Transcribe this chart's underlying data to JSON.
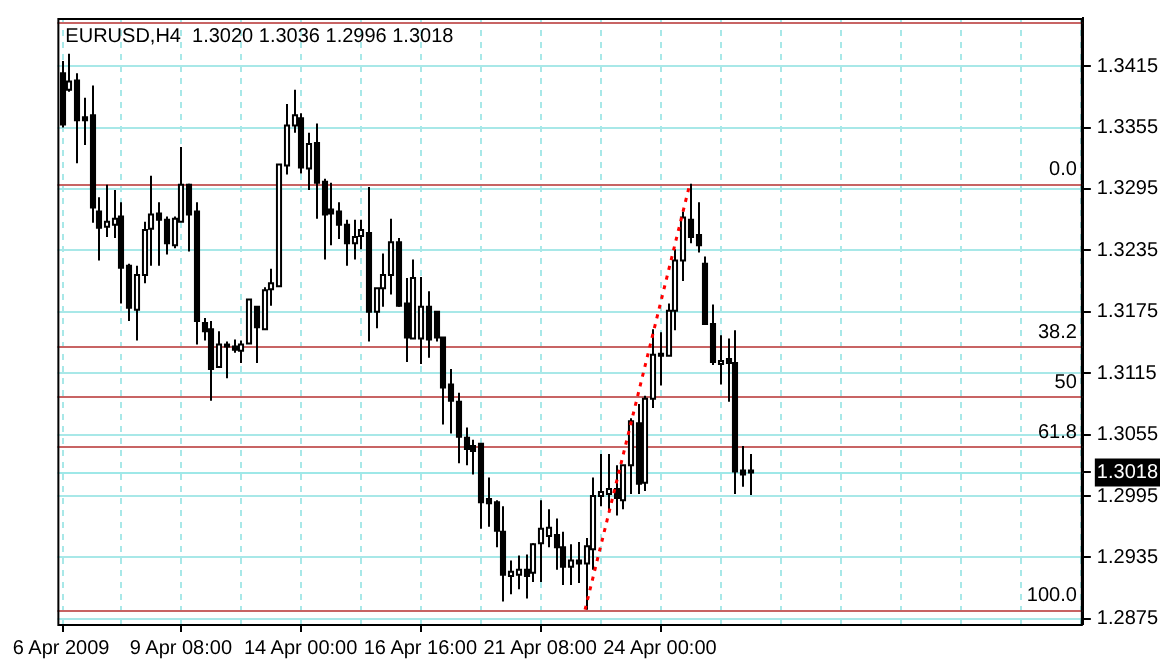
{
  "chart_data": {
    "type": "candlestick",
    "title": "EURUSD,H4  1.3020 1.3036 1.2996 1.3018",
    "categories": [
      "6 Apr 2009",
      null,
      null,
      null,
      null,
      null,
      null,
      null,
      null,
      null,
      null,
      null,
      null,
      null,
      null,
      null,
      "9 Apr 08:00",
      null,
      null,
      null,
      null,
      null,
      null,
      null,
      null,
      null,
      null,
      null,
      null,
      null,
      null,
      null,
      "14 Apr 00:00",
      null,
      null,
      null,
      null,
      null,
      null,
      null,
      null,
      null,
      null,
      null,
      null,
      null,
      null,
      null,
      "16 Apr 16:00",
      null,
      null,
      null,
      null,
      null,
      null,
      null,
      null,
      null,
      null,
      null,
      null,
      null,
      null,
      null,
      "21 Apr 08:00",
      null,
      null,
      null,
      null,
      null,
      null,
      null,
      null,
      null,
      null,
      null,
      null,
      null,
      null,
      null,
      "24 Apr 00:00",
      null,
      null,
      null,
      null,
      null,
      null,
      null,
      null,
      null,
      null,
      null,
      null,
      null,
      null,
      null,
      null,
      null,
      null,
      null,
      null,
      null,
      null,
      null,
      null,
      null,
      null,
      null,
      null,
      null,
      null,
      null,
      null,
      null,
      null,
      null,
      null,
      null,
      null,
      null,
      null,
      null,
      null,
      null,
      null,
      null,
      null,
      null,
      null,
      null,
      null,
      null,
      null,
      null,
      null,
      null,
      null
    ],
    "ohlc": [
      [
        1.3408,
        1.342,
        1.3355,
        1.3358
      ],
      [
        1.3392,
        1.3427,
        1.339,
        1.34
      ],
      [
        1.3401,
        1.3408,
        1.332,
        1.3362
      ],
      [
        1.3365,
        1.3384,
        1.3338,
        1.3362
      ],
      [
        1.3367,
        1.3396,
        1.3262,
        1.3277
      ],
      [
        1.3273,
        1.3287,
        1.3225,
        1.3257
      ],
      [
        1.3258,
        1.3299,
        1.3248,
        1.3263
      ],
      [
        1.326,
        1.3294,
        1.3247,
        1.3266
      ],
      [
        1.3268,
        1.3282,
        1.3183,
        1.3218
      ],
      [
        1.322,
        1.3222,
        1.3166,
        1.3179
      ],
      [
        1.3177,
        1.322,
        1.3147,
        1.3211
      ],
      [
        1.3211,
        1.3263,
        1.3203,
        1.3255
      ],
      [
        1.3256,
        1.3308,
        1.322,
        1.327
      ],
      [
        1.3271,
        1.3282,
        1.322,
        1.3265
      ],
      [
        1.3265,
        1.3268,
        1.3231,
        1.3242
      ],
      [
        1.324,
        1.3268,
        1.3237,
        1.3266
      ],
      [
        1.3263,
        1.3336,
        1.3263,
        1.3299
      ],
      [
        1.3299,
        1.33,
        1.3234,
        1.327
      ],
      [
        1.3273,
        1.3282,
        1.3143,
        1.3166
      ],
      [
        1.3164,
        1.3169,
        1.3147,
        1.3156
      ],
      [
        1.3158,
        1.3166,
        1.3088,
        1.3119
      ],
      [
        1.3121,
        1.3156,
        1.3121,
        1.3143
      ],
      [
        1.3142,
        1.3146,
        1.311,
        1.3143
      ],
      [
        1.3141,
        1.3148,
        1.3135,
        1.3138
      ],
      [
        1.3137,
        1.3147,
        1.3125,
        1.3143
      ],
      [
        1.3144,
        1.3187,
        1.3144,
        1.3187
      ],
      [
        1.318,
        1.318,
        1.3125,
        1.316
      ],
      [
        1.3158,
        1.3199,
        1.3158,
        1.3196
      ],
      [
        1.3197,
        1.3217,
        1.3181,
        1.3203
      ],
      [
        1.32,
        1.3319,
        1.32,
        1.3319
      ],
      [
        1.3318,
        1.3378,
        1.3309,
        1.3357
      ],
      [
        1.3357,
        1.3392,
        1.335,
        1.3367
      ],
      [
        1.3364,
        1.3369,
        1.331,
        1.3316
      ],
      [
        1.3315,
        1.335,
        1.3294,
        1.3339
      ],
      [
        1.334,
        1.3359,
        1.3266,
        1.3301
      ],
      [
        1.3302,
        1.3305,
        1.3226,
        1.327
      ],
      [
        1.3275,
        1.3301,
        1.324,
        1.3271
      ],
      [
        1.3273,
        1.3282,
        1.3246,
        1.326
      ],
      [
        1.326,
        1.3265,
        1.322,
        1.3242
      ],
      [
        1.3242,
        1.3265,
        1.3226,
        1.3248
      ],
      [
        1.3249,
        1.3265,
        1.3236,
        1.3255
      ],
      [
        1.3252,
        1.3297,
        1.3146,
        1.3175
      ],
      [
        1.3175,
        1.3198,
        1.3159,
        1.3198
      ],
      [
        1.3198,
        1.3232,
        1.318,
        1.3211
      ],
      [
        1.3211,
        1.3266,
        1.3192,
        1.3243
      ],
      [
        1.3243,
        1.3247,
        1.318,
        1.3181
      ],
      [
        1.3183,
        1.3208,
        1.3126,
        1.315
      ],
      [
        1.3149,
        1.3226,
        1.3149,
        1.3208
      ],
      [
        1.3149,
        1.3209,
        1.3124,
        1.318
      ],
      [
        1.318,
        1.3195,
        1.313,
        1.3148
      ],
      [
        1.3175,
        1.3175,
        1.3146,
        1.315
      ],
      [
        1.315,
        1.315,
        1.3065,
        1.3101
      ],
      [
        1.3104,
        1.3119,
        1.3056,
        1.3088
      ],
      [
        1.3087,
        1.3096,
        1.3027,
        1.3053
      ],
      [
        1.3052,
        1.3062,
        1.3025,
        1.3041
      ],
      [
        1.3044,
        1.305,
        1.3016,
        1.3039
      ],
      [
        1.3046,
        1.3046,
        1.2963,
        1.2989
      ],
      [
        1.2992,
        1.3013,
        1.2965,
        1.2988
      ],
      [
        1.2989,
        1.2991,
        1.2945,
        1.2961
      ],
      [
        1.296,
        1.2985,
        1.2892,
        1.2918
      ],
      [
        1.2917,
        1.2932,
        1.2899,
        1.2921
      ],
      [
        1.2918,
        1.2937,
        1.2904,
        1.2923
      ],
      [
        1.2923,
        1.2938,
        1.2895,
        1.2917
      ],
      [
        1.292,
        1.2949,
        1.2911,
        1.2948
      ],
      [
        1.2949,
        1.2991,
        1.2911,
        1.2963
      ],
      [
        1.2956,
        1.2982,
        1.2945,
        1.2964
      ],
      [
        1.2957,
        1.2973,
        1.2923,
        1.2945
      ],
      [
        1.2945,
        1.296,
        1.2908,
        1.2926
      ],
      [
        1.2926,
        1.2948,
        1.2908,
        1.2932
      ],
      [
        1.2932,
        1.295,
        1.291,
        1.2929
      ],
      [
        1.2929,
        1.2954,
        1.2884,
        1.2946
      ],
      [
        1.2943,
        1.3013,
        1.2923,
        1.2995
      ],
      [
        1.2995,
        1.3036,
        1.2985,
        1.2999
      ],
      [
        1.2997,
        1.3036,
        1.2979,
        1.3002
      ],
      [
        1.3002,
        1.3025,
        1.2976,
        1.2993
      ],
      [
        1.2991,
        1.3025,
        1.2982,
        1.3025
      ],
      [
        1.3025,
        1.3071,
        1.2997,
        1.3068
      ],
      [
        1.3066,
        1.3085,
        1.2997,
        1.3007
      ],
      [
        1.3008,
        1.3093,
        1.3,
        1.309
      ],
      [
        1.309,
        1.3158,
        1.3081,
        1.3133
      ],
      [
        1.3132,
        1.3155,
        1.3103,
        1.3134
      ],
      [
        1.3132,
        1.3183,
        1.3132,
        1.3176
      ],
      [
        1.3176,
        1.3236,
        1.3157,
        1.3225
      ],
      [
        1.3225,
        1.3273,
        1.3205,
        1.3267
      ],
      [
        1.3265,
        1.33,
        1.3242,
        1.3248
      ],
      [
        1.325,
        1.3282,
        1.3233,
        1.324
      ],
      [
        1.3222,
        1.3229,
        1.3163,
        1.3163
      ],
      [
        1.3163,
        1.3182,
        1.3123,
        1.3126
      ],
      [
        1.3124,
        1.3152,
        1.3104,
        1.3127
      ],
      [
        1.3129,
        1.3149,
        1.3087,
        1.3125
      ],
      [
        1.3125,
        1.3157,
        1.2997,
        1.3019
      ],
      [
        1.302,
        1.3044,
        1.3004,
        1.3016
      ],
      [
        1.302,
        1.3036,
        1.2996,
        1.3018
      ],
      null,
      null,
      null,
      null,
      null,
      null,
      null,
      null,
      null,
      null,
      null,
      null,
      null,
      null,
      null,
      null,
      null,
      null,
      null,
      null,
      null,
      null,
      null,
      null,
      null,
      null,
      null,
      null,
      null,
      null,
      null,
      null,
      null,
      null,
      null,
      null,
      null,
      null,
      null,
      null,
      null,
      null,
      null,
      null
    ],
    "series": [
      {
        "type": "line",
        "color": "#ff0000",
        "line_style": "dotted",
        "values": [
          null,
          null,
          null,
          null,
          null,
          null,
          null,
          null,
          null,
          null,
          null,
          null,
          null,
          null,
          null,
          null,
          null,
          null,
          null,
          null,
          null,
          null,
          null,
          null,
          null,
          null,
          null,
          null,
          null,
          null,
          null,
          null,
          null,
          null,
          null,
          null,
          null,
          null,
          null,
          null,
          null,
          null,
          null,
          null,
          null,
          null,
          null,
          null,
          null,
          null,
          null,
          null,
          null,
          null,
          null,
          null,
          null,
          null,
          null,
          null,
          null,
          null,
          null,
          null,
          null,
          null,
          null,
          null,
          null,
          null,
          1.2884,
          null,
          null,
          null,
          null,
          null,
          null,
          null,
          null,
          null,
          null,
          null,
          null,
          null,
          1.33,
          null,
          null,
          null,
          null,
          null,
          null,
          null,
          null,
          null,
          null,
          null,
          null,
          null,
          null,
          null,
          null,
          null,
          null,
          null,
          null,
          null,
          null,
          null,
          null,
          null,
          null,
          null,
          null,
          null,
          null,
          null,
          null,
          null,
          null,
          null,
          null,
          null,
          null,
          null,
          null,
          null,
          null,
          null,
          null,
          null,
          null,
          null,
          null,
          null,
          null,
          null,
          null
        ]
      }
    ],
    "ylim": [
      1.287,
      1.3462
    ],
    "yticks": [
      1.2875,
      1.2935,
      1.2995,
      {
        "value": 1.3018,
        "label": "1.3018"
      },
      1.3055,
      1.3115,
      1.3175,
      1.3235,
      1.3295,
      1.3355,
      1.3415
    ],
    "ref_lines": [
      {
        "axis": "y",
        "value": 1.3458,
        "color": "#c86464"
      },
      {
        "axis": "y",
        "value": 1.33,
        "color": "#c86464"
      },
      {
        "axis": "y",
        "value": 1.3141,
        "color": "#c86464"
      },
      {
        "axis": "y",
        "value": 1.3092,
        "color": "#c86464"
      },
      {
        "axis": "y",
        "value": 1.3043,
        "color": "#c86464"
      },
      {
        "axis": "y",
        "value": 1.2884,
        "color": "#c86464"
      },
      {
        "axis": "y",
        "value": 1.3018,
        "color": "#9ee8e8"
      }
    ],
    "annotations": [
      {
        "text": "0.0",
        "y": 1.33
      },
      {
        "text": "38.2",
        "y": 1.3141
      },
      {
        "text": "50",
        "y": 1.3092
      },
      {
        "text": "61.8",
        "y": 1.3043
      },
      {
        "text": "100.0",
        "y": 1.2884
      }
    ],
    "grid": true
  }
}
